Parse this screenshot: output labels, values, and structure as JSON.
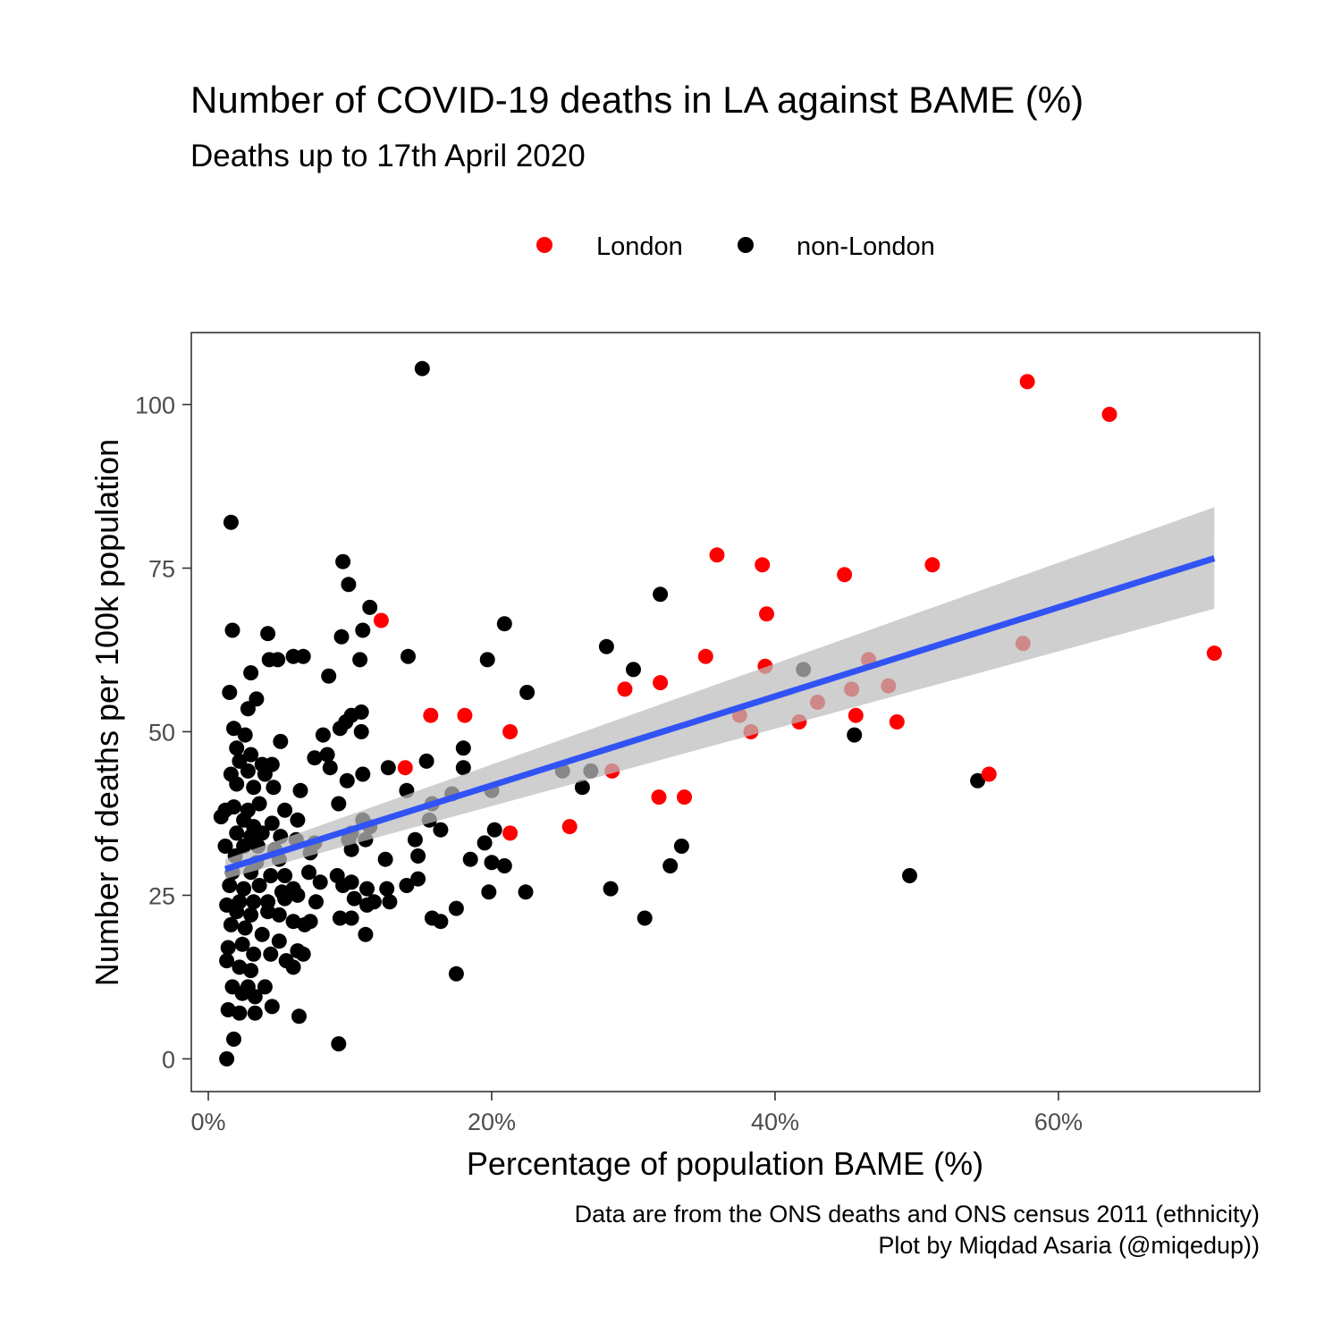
{
  "chart_data": {
    "type": "scatter",
    "title": "Number of COVID-19 deaths in LA against BAME (%)",
    "subtitle": "Deaths up to 17th April 2020",
    "xlabel": "Percentage of population BAME (%)",
    "ylabel": "Number of deaths per 100k population",
    "caption_lines": [
      "Data are from the ONS deaths and ONS census 2011 (ethnicity)",
      "Plot by Miqdad Asaria (@miqedup))"
    ],
    "xlim": [
      -0.012,
      0.742
    ],
    "ylim": [
      -5,
      111
    ],
    "x_ticks": [
      {
        "value": 0,
        "label": "0%"
      },
      {
        "value": 0.2,
        "label": "20%"
      },
      {
        "value": 0.4,
        "label": "40%"
      },
      {
        "value": 0.6,
        "label": "60%"
      }
    ],
    "y_ticks": [
      {
        "value": 0,
        "label": "0"
      },
      {
        "value": 25,
        "label": "25"
      },
      {
        "value": 50,
        "label": "50"
      },
      {
        "value": 75,
        "label": "75"
      },
      {
        "value": 100,
        "label": "100"
      }
    ],
    "grid": false,
    "legend_position": "top",
    "colors": {
      "London": "#ff0000",
      "non-London": "#000000",
      "trend": "#3153f5",
      "band": "#bdbdbd"
    },
    "trend": {
      "x": [
        0.012,
        0.71
      ],
      "y": [
        29.0,
        76.5
      ],
      "band_lower": [
        27.5,
        68.8
      ],
      "band_upper": [
        30.5,
        84.3
      ],
      "band_x": [
        0.012,
        0.71
      ]
    },
    "series": [
      {
        "name": "London",
        "color": "#ff0000",
        "points": [
          [
            0.578,
            103.5
          ],
          [
            0.636,
            98.5
          ],
          [
            0.71,
            62
          ],
          [
            0.359,
            77
          ],
          [
            0.391,
            75.5
          ],
          [
            0.449,
            74
          ],
          [
            0.511,
            75.5
          ],
          [
            0.122,
            67
          ],
          [
            0.394,
            68
          ],
          [
            0.351,
            61.5
          ],
          [
            0.393,
            60
          ],
          [
            0.466,
            61
          ],
          [
            0.575,
            63.5
          ],
          [
            0.294,
            56.5
          ],
          [
            0.319,
            57.5
          ],
          [
            0.454,
            56.5
          ],
          [
            0.43,
            54.5
          ],
          [
            0.48,
            57
          ],
          [
            0.157,
            52.5
          ],
          [
            0.181,
            52.5
          ],
          [
            0.375,
            52.5
          ],
          [
            0.457,
            52.5
          ],
          [
            0.417,
            51.5
          ],
          [
            0.486,
            51.5
          ],
          [
            0.213,
            50
          ],
          [
            0.383,
            50
          ],
          [
            0.139,
            44.5
          ],
          [
            0.285,
            44
          ],
          [
            0.551,
            43.5
          ],
          [
            0.318,
            40
          ],
          [
            0.336,
            40
          ],
          [
            0.255,
            35.5
          ],
          [
            0.213,
            34.5
          ]
        ]
      },
      {
        "name": "non-London",
        "color": "#000000",
        "points": [
          [
            0.151,
            105.5
          ],
          [
            0.016,
            82
          ],
          [
            0.095,
            76
          ],
          [
            0.099,
            72.5
          ],
          [
            0.114,
            69
          ],
          [
            0.319,
            71
          ],
          [
            0.017,
            65.5
          ],
          [
            0.042,
            65
          ],
          [
            0.094,
            64.5
          ],
          [
            0.109,
            65.5
          ],
          [
            0.209,
            66.5
          ],
          [
            0.141,
            61.5
          ],
          [
            0.06,
            61.5
          ],
          [
            0.067,
            61.5
          ],
          [
            0.043,
            61
          ],
          [
            0.049,
            61
          ],
          [
            0.107,
            61
          ],
          [
            0.197,
            61
          ],
          [
            0.281,
            63
          ],
          [
            0.3,
            59.5
          ],
          [
            0.42,
            59.5
          ],
          [
            0.03,
            59
          ],
          [
            0.085,
            58.5
          ],
          [
            0.225,
            56
          ],
          [
            0.015,
            56
          ],
          [
            0.034,
            55
          ],
          [
            0.028,
            53.5
          ],
          [
            0.108,
            53
          ],
          [
            0.097,
            51.5
          ],
          [
            0.101,
            52.5
          ],
          [
            0.093,
            50.5
          ],
          [
            0.018,
            50.5
          ],
          [
            0.026,
            49.5
          ],
          [
            0.081,
            49.5
          ],
          [
            0.108,
            50
          ],
          [
            0.051,
            48.5
          ],
          [
            0.456,
            49.5
          ],
          [
            0.02,
            47.5
          ],
          [
            0.03,
            46.5
          ],
          [
            0.022,
            45.5
          ],
          [
            0.038,
            45
          ],
          [
            0.045,
            45
          ],
          [
            0.075,
            46
          ],
          [
            0.084,
            46.5
          ],
          [
            0.18,
            47.5
          ],
          [
            0.154,
            45.5
          ],
          [
            0.028,
            44
          ],
          [
            0.016,
            43.5
          ],
          [
            0.04,
            43.5
          ],
          [
            0.086,
            44.5
          ],
          [
            0.109,
            43.5
          ],
          [
            0.127,
            44.5
          ],
          [
            0.18,
            44.5
          ],
          [
            0.25,
            44
          ],
          [
            0.27,
            44
          ],
          [
            0.02,
            42
          ],
          [
            0.032,
            41.5
          ],
          [
            0.046,
            41.5
          ],
          [
            0.065,
            41
          ],
          [
            0.098,
            42.5
          ],
          [
            0.14,
            41
          ],
          [
            0.172,
            40.5
          ],
          [
            0.2,
            41
          ],
          [
            0.264,
            41.5
          ],
          [
            0.543,
            42.5
          ],
          [
            0.012,
            38
          ],
          [
            0.018,
            38.5
          ],
          [
            0.028,
            38
          ],
          [
            0.036,
            39
          ],
          [
            0.054,
            38
          ],
          [
            0.092,
            39
          ],
          [
            0.158,
            39
          ],
          [
            0.009,
            37
          ],
          [
            0.025,
            36.5
          ],
          [
            0.032,
            35.5
          ],
          [
            0.045,
            36
          ],
          [
            0.063,
            36.5
          ],
          [
            0.109,
            36.5
          ],
          [
            0.156,
            36.5
          ],
          [
            0.02,
            34.5
          ],
          [
            0.03,
            34
          ],
          [
            0.038,
            34.5
          ],
          [
            0.051,
            34
          ],
          [
            0.101,
            34.5
          ],
          [
            0.114,
            35.5
          ],
          [
            0.164,
            35
          ],
          [
            0.202,
            35
          ],
          [
            0.012,
            32.5
          ],
          [
            0.025,
            32.5
          ],
          [
            0.035,
            32.5
          ],
          [
            0.047,
            32
          ],
          [
            0.062,
            33.5
          ],
          [
            0.075,
            33
          ],
          [
            0.099,
            33.5
          ],
          [
            0.111,
            33.5
          ],
          [
            0.146,
            33.5
          ],
          [
            0.195,
            33
          ],
          [
            0.019,
            31
          ],
          [
            0.034,
            30
          ],
          [
            0.05,
            30.5
          ],
          [
            0.072,
            31.5
          ],
          [
            0.101,
            32
          ],
          [
            0.125,
            30.5
          ],
          [
            0.148,
            31
          ],
          [
            0.185,
            30.5
          ],
          [
            0.2,
            30
          ],
          [
            0.209,
            29.5
          ],
          [
            0.334,
            32.5
          ],
          [
            0.017,
            28.5
          ],
          [
            0.03,
            28.5
          ],
          [
            0.044,
            28
          ],
          [
            0.054,
            28
          ],
          [
            0.071,
            28.5
          ],
          [
            0.091,
            28
          ],
          [
            0.148,
            27.5
          ],
          [
            0.326,
            29.5
          ],
          [
            0.015,
            26.5
          ],
          [
            0.025,
            26
          ],
          [
            0.036,
            26.5
          ],
          [
            0.052,
            25.5
          ],
          [
            0.06,
            26
          ],
          [
            0.079,
            27
          ],
          [
            0.095,
            26.5
          ],
          [
            0.101,
            27
          ],
          [
            0.112,
            26
          ],
          [
            0.126,
            26
          ],
          [
            0.14,
            26.5
          ],
          [
            0.198,
            25.5
          ],
          [
            0.224,
            25.5
          ],
          [
            0.284,
            26
          ],
          [
            0.495,
            28
          ],
          [
            0.013,
            23.5
          ],
          [
            0.022,
            24
          ],
          [
            0.032,
            24
          ],
          [
            0.042,
            24
          ],
          [
            0.054,
            24.5
          ],
          [
            0.063,
            25
          ],
          [
            0.076,
            24
          ],
          [
            0.103,
            24.5
          ],
          [
            0.117,
            24
          ],
          [
            0.128,
            24
          ],
          [
            0.02,
            22.5
          ],
          [
            0.03,
            22
          ],
          [
            0.042,
            22.5
          ],
          [
            0.05,
            22
          ],
          [
            0.06,
            21
          ],
          [
            0.072,
            21
          ],
          [
            0.093,
            21.5
          ],
          [
            0.101,
            21.5
          ],
          [
            0.112,
            23.5
          ],
          [
            0.158,
            21.5
          ],
          [
            0.164,
            21
          ],
          [
            0.175,
            23
          ],
          [
            0.308,
            21.5
          ],
          [
            0.016,
            20.5
          ],
          [
            0.026,
            20
          ],
          [
            0.038,
            19
          ],
          [
            0.05,
            18
          ],
          [
            0.068,
            20.5
          ],
          [
            0.111,
            19
          ],
          [
            0.014,
            17
          ],
          [
            0.024,
            17.5
          ],
          [
            0.032,
            16
          ],
          [
            0.044,
            16
          ],
          [
            0.055,
            15
          ],
          [
            0.063,
            16.5
          ],
          [
            0.067,
            16
          ],
          [
            0.013,
            15
          ],
          [
            0.022,
            14
          ],
          [
            0.03,
            13.5
          ],
          [
            0.06,
            14
          ],
          [
            0.175,
            13
          ],
          [
            0.017,
            11
          ],
          [
            0.028,
            11
          ],
          [
            0.04,
            11
          ],
          [
            0.024,
            10
          ],
          [
            0.033,
            9.5
          ],
          [
            0.045,
            8
          ],
          [
            0.014,
            7.5
          ],
          [
            0.022,
            7
          ],
          [
            0.033,
            7
          ],
          [
            0.064,
            6.5
          ],
          [
            0.018,
            3
          ],
          [
            0.092,
            2.3
          ],
          [
            0.013,
            0
          ]
        ]
      }
    ]
  }
}
